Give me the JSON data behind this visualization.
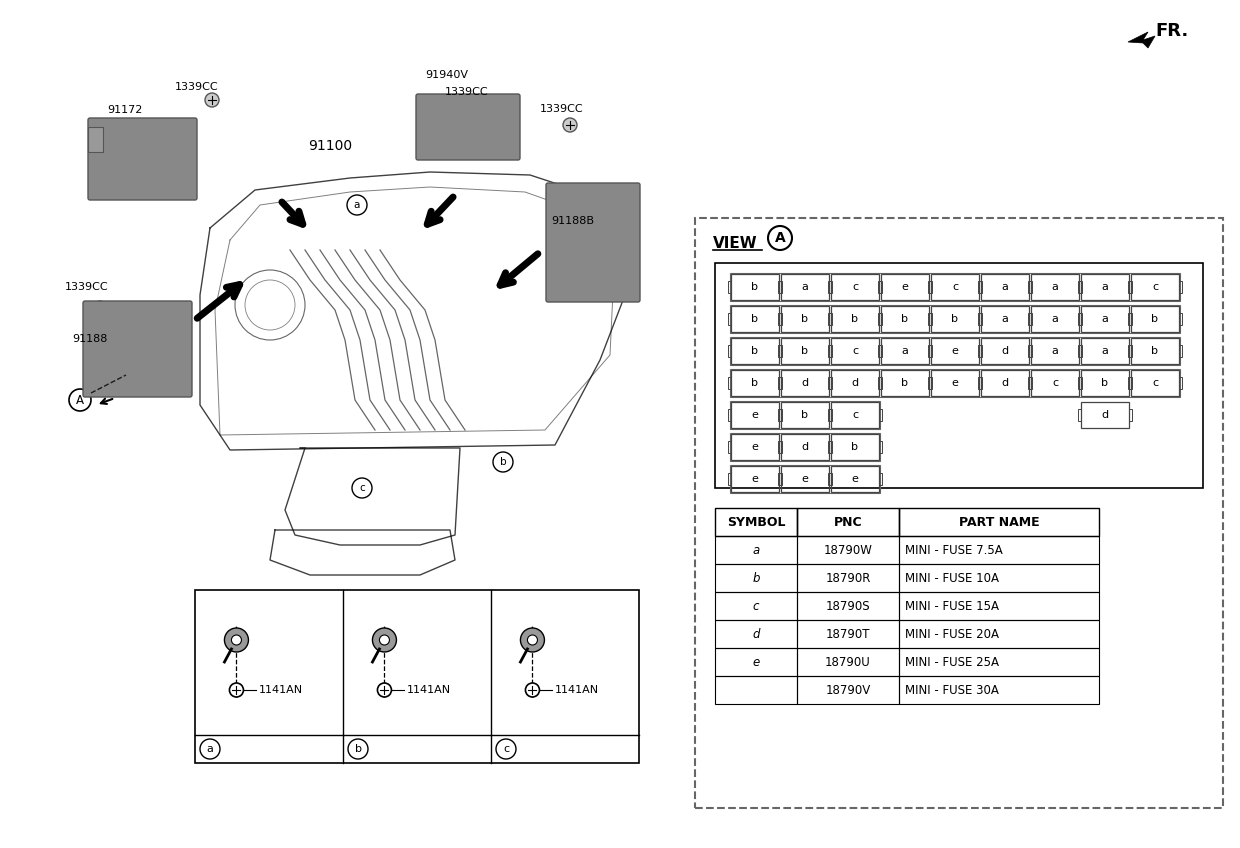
{
  "fuse_grid": [
    [
      "b",
      "a",
      "c",
      "e",
      "c",
      "a",
      "a",
      "a",
      "c"
    ],
    [
      "b",
      "b",
      "b",
      "b",
      "b",
      "a",
      "a",
      "a",
      "b"
    ],
    [
      "b",
      "b",
      "c",
      "a",
      "e",
      "d",
      "a",
      "a",
      "b"
    ],
    [
      "b",
      "d",
      "d",
      "b",
      "e",
      "d",
      "c",
      "b",
      "c"
    ],
    [
      "e",
      "b",
      "c",
      "",
      "",
      "",
      "",
      "",
      ""
    ],
    [
      "e",
      "d",
      "b",
      "",
      "",
      "",
      "",
      "",
      ""
    ],
    [
      "e",
      "e",
      "e",
      "",
      "",
      "",
      "",
      "",
      ""
    ]
  ],
  "row5_right_d": true,
  "table_headers": [
    "SYMBOL",
    "PNC",
    "PART NAME"
  ],
  "table_rows": [
    [
      "a",
      "18790W",
      "MINI - FUSE 7.5A"
    ],
    [
      "b",
      "18790R",
      "MINI - FUSE 10A"
    ],
    [
      "c",
      "18790S",
      "MINI - FUSE 15A"
    ],
    [
      "d",
      "18790T",
      "MINI - FUSE 20A"
    ],
    [
      "e",
      "18790U",
      "MINI - FUSE 25A"
    ],
    [
      "",
      "18790V",
      "MINI - FUSE 30A"
    ]
  ],
  "bottom_cols": [
    "a",
    "b",
    "c"
  ],
  "bottom_label": "1141AN",
  "bg_color": "#ffffff"
}
